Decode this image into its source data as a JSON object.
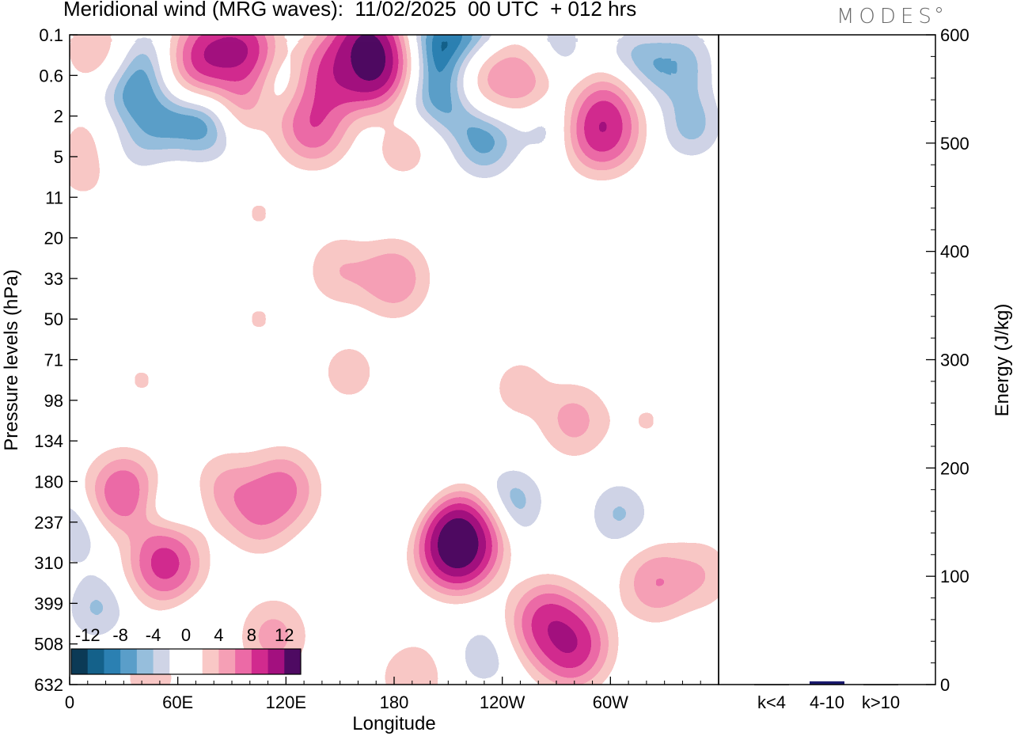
{
  "header": {
    "title": "Meridional wind (MRG waves):  11/02/2025  00 UTC  + 012 hrs",
    "logo": "MODES"
  },
  "colors": {
    "neg": [
      "#0b3a56",
      "#14618a",
      "#2b80b2",
      "#5a9ec9",
      "#96bedc",
      "#cfd4e6"
    ],
    "pos": [
      "#f9c8c6",
      "#f59fb5",
      "#ec6aa6",
      "#d12a8e",
      "#a3107f",
      "#4e0a62"
    ],
    "bar": "#1a1a6e"
  },
  "chart_data": [
    {
      "type": "heatmap",
      "title": "Meridional wind (MRG waves):  11/02/2025  00 UTC  + 012 hrs",
      "xlabel": "Longitude",
      "ylabel": "Pressure levels (hPa)",
      "x_ticks": [
        "0",
        "60E",
        "120E",
        "180",
        "120W",
        "60W"
      ],
      "x_tick_degrees": [
        0,
        60,
        120,
        180,
        240,
        300
      ],
      "xlim": [
        0,
        360
      ],
      "y_levels": [
        "0.1",
        "0.6",
        "2",
        "5",
        "11",
        "20",
        "33",
        "50",
        "71",
        "98",
        "134",
        "180",
        "237",
        "310",
        "399",
        "508",
        "632"
      ],
      "colorbar": {
        "levels": [
          -14,
          -12,
          -10,
          -8,
          -6,
          -4,
          -2,
          2,
          4,
          6,
          8,
          10,
          12,
          14
        ],
        "labels": [
          "-12",
          "-8",
          "-4",
          "0",
          "4",
          "8",
          "12"
        ],
        "label_values": [
          -12,
          -8,
          -4,
          0,
          4,
          8,
          12
        ]
      },
      "features": [
        {
          "lon": 15,
          "level": 0.4,
          "value": 5
        },
        {
          "lon": 40,
          "level": 0.7,
          "value": -6
        },
        {
          "lon": 35,
          "level": 1.5,
          "value": -10
        },
        {
          "lon": 45,
          "level": 2.2,
          "value": -9
        },
        {
          "lon": 30,
          "level": 2.7,
          "value": -4
        },
        {
          "lon": 78,
          "level": 0.6,
          "value": 11
        },
        {
          "lon": 95,
          "level": 0.6,
          "value": 12
        },
        {
          "lon": 90,
          "level": 1.6,
          "value": 8
        },
        {
          "lon": 120,
          "level": 1.1,
          "value": -5
        },
        {
          "lon": 165,
          "level": 0.6,
          "value": 15
        },
        {
          "lon": 145,
          "level": 1.0,
          "value": 10
        },
        {
          "lon": 200,
          "level": 0.3,
          "value": -10
        },
        {
          "lon": 220,
          "level": 0.5,
          "value": -15
        },
        {
          "lon": 205,
          "level": 1.5,
          "value": -9
        },
        {
          "lon": 235,
          "level": 1.1,
          "value": 6
        },
        {
          "lon": 255,
          "level": 1.0,
          "value": 7
        },
        {
          "lon": 270,
          "level": 0.3,
          "value": -5
        },
        {
          "lon": 315,
          "level": 0.8,
          "value": -8
        },
        {
          "lon": 340,
          "level": 0.7,
          "value": -7
        },
        {
          "lon": 300,
          "level": 1.6,
          "value": 5
        },
        {
          "lon": 75,
          "level": 2.2,
          "value": -9
        },
        {
          "lon": 135,
          "level": 2.2,
          "value": 9
        },
        {
          "lon": 10,
          "level": 2.4,
          "value": 3
        },
        {
          "lon": 185,
          "level": 2.8,
          "value": 4
        },
        {
          "lon": 230,
          "level": 2.6,
          "value": -9
        },
        {
          "lon": 270,
          "level": 2.2,
          "value": -6
        },
        {
          "lon": 295,
          "level": 2.3,
          "value": 11
        },
        {
          "lon": 345,
          "level": 2.2,
          "value": -7
        },
        {
          "lon": 8,
          "level": 3.3,
          "value": 4
        },
        {
          "lon": 45,
          "level": 4.4,
          "value": -3
        },
        {
          "lon": 105,
          "level": 4.4,
          "value": 3
        },
        {
          "lon": 150,
          "level": 5.8,
          "value": 5
        },
        {
          "lon": 180,
          "level": 6.0,
          "value": 7
        },
        {
          "lon": 240,
          "level": 5.0,
          "value": -3
        },
        {
          "lon": 60,
          "level": 7.0,
          "value": -3
        },
        {
          "lon": 105,
          "level": 7.0,
          "value": 3
        },
        {
          "lon": 155,
          "level": 8.3,
          "value": 4
        },
        {
          "lon": 40,
          "level": 8.5,
          "value": 3
        },
        {
          "lon": 250,
          "level": 8.7,
          "value": 4
        },
        {
          "lon": 280,
          "level": 9.5,
          "value": 6
        },
        {
          "lon": 320,
          "level": 9.5,
          "value": 3
        },
        {
          "lon": 30,
          "level": 11.3,
          "value": 9
        },
        {
          "lon": 55,
          "level": 11.8,
          "value": -5
        },
        {
          "lon": 88,
          "level": 11.2,
          "value": 6
        },
        {
          "lon": 105,
          "level": 11.8,
          "value": 7
        },
        {
          "lon": 118,
          "level": 11.2,
          "value": 8
        },
        {
          "lon": 2,
          "level": 12.2,
          "value": -6
        },
        {
          "lon": 200,
          "level": 12.0,
          "value": -11
        },
        {
          "lon": 215,
          "level": 12.5,
          "value": 15
        },
        {
          "lon": 246,
          "level": 11.5,
          "value": -7
        },
        {
          "lon": 305,
          "level": 11.8,
          "value": -6
        },
        {
          "lon": 53,
          "level": 13.0,
          "value": 10
        },
        {
          "lon": 15,
          "level": 14.1,
          "value": -6
        },
        {
          "lon": 71,
          "level": 14.5,
          "value": -3
        },
        {
          "lon": 113,
          "level": 14.8,
          "value": 6
        },
        {
          "lon": 165,
          "level": 14.3,
          "value": -3
        },
        {
          "lon": 265,
          "level": 14.5,
          "value": 10
        },
        {
          "lon": 278,
          "level": 15.0,
          "value": 11
        },
        {
          "lon": 325,
          "level": 13.5,
          "value": 7
        },
        {
          "lon": 350,
          "level": 13.3,
          "value": 5
        },
        {
          "lon": 45,
          "level": 15.8,
          "value": 4
        },
        {
          "lon": 190,
          "level": 15.8,
          "value": 5
        },
        {
          "lon": 230,
          "level": 15.3,
          "value": -5
        },
        {
          "lon": 350,
          "level": 15.4,
          "value": -3
        }
      ]
    },
    {
      "type": "bar",
      "categories": [
        "k<4",
        "4-10",
        "k>10"
      ],
      "values": [
        0,
        3,
        0
      ],
      "ylabel": "Energy (J/kg)",
      "ylim": [
        0,
        600
      ],
      "y_ticks": [
        0,
        100,
        200,
        300,
        400,
        500,
        600
      ],
      "y_tick_labels": [
        "0",
        "100",
        "200",
        "300",
        "400",
        "500",
        "600"
      ]
    }
  ]
}
